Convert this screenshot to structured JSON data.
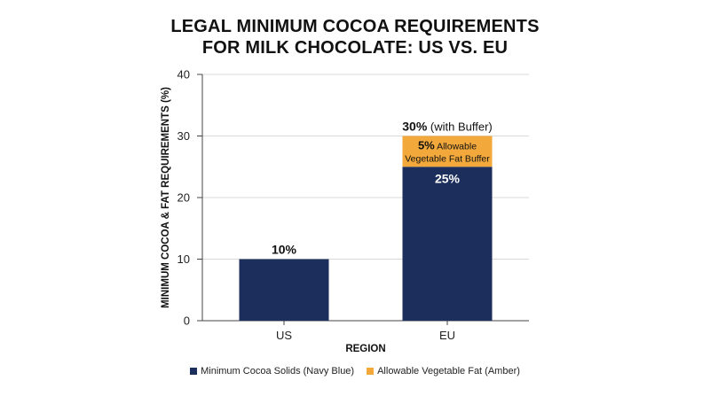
{
  "title_line1": "LEGAL MINIMUM COCOA REQUIREMENTS",
  "title_line2": "FOR MILK CHOCOLATE: US VS. EU",
  "colors": {
    "navy": "#1b2e5c",
    "amber": "#f2a83b",
    "grid": "#d9d9d9",
    "axis": "#444444"
  },
  "chart_data": {
    "type": "bar",
    "stacked": true,
    "categories": [
      "US",
      "EU"
    ],
    "series": [
      {
        "name": "Minimum Cocoa Solids (Navy Blue)",
        "values": [
          10,
          25
        ],
        "color": "#1b2e5c"
      },
      {
        "name": "Allowable Vegetable Fat (Amber)",
        "values": [
          0,
          5
        ],
        "color": "#f2a83b"
      }
    ],
    "xlabel": "REGION",
    "ylabel": "MINIMUM COCOA & FAT REQUIREMENTS (%)",
    "ylim": [
      0,
      40
    ],
    "yticks": [
      0,
      10,
      20,
      30,
      40
    ],
    "grid": true,
    "legend_position": "bottom",
    "annotations": {
      "us_top": "10%",
      "eu_top_bold": "30%",
      "eu_top_rest": " (with Buffer)",
      "eu_inner_navy": "25%",
      "eu_buffer_bold": "5%",
      "eu_buffer_line1_rest": " Allowable",
      "eu_buffer_line2": "Vegetable Fat Buffer"
    }
  }
}
